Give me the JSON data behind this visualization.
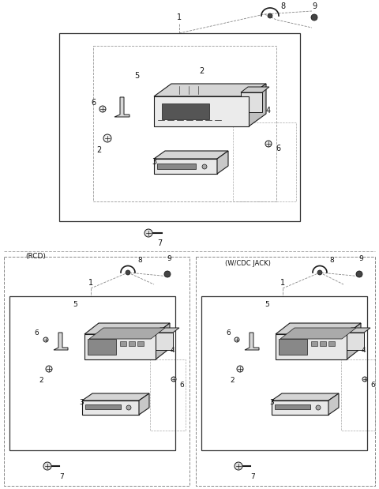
{
  "bg_color": "#ffffff",
  "line_color": "#1a1a1a",
  "dash_color": "#777777",
  "fig_width": 4.8,
  "fig_height": 6.19,
  "dpi": 100
}
